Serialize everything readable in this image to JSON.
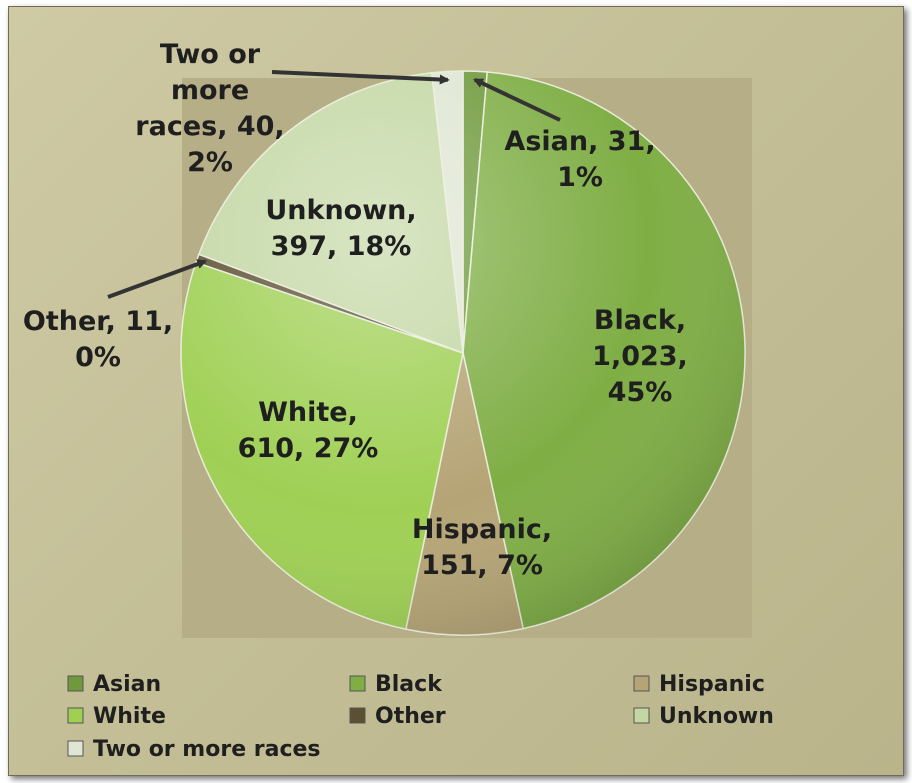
{
  "chart_data": {
    "type": "pie",
    "title": "",
    "slices": [
      {
        "name": "Asian",
        "value": 31,
        "percent": "1%",
        "color": "#6f9a3c",
        "label": [
          "Asian, 31,",
          "1%"
        ]
      },
      {
        "name": "Black",
        "value": 1023,
        "percent": "45%",
        "color": "#7fae45",
        "label": [
          "Black,",
          "1,023,",
          "45%"
        ]
      },
      {
        "name": "Hispanic",
        "value": 151,
        "percent": "7%",
        "color": "#b5a475",
        "label": [
          "Hispanic,",
          "151, 7%"
        ]
      },
      {
        "name": "White",
        "value": 610,
        "percent": "27%",
        "color": "#9fd054",
        "label": [
          "White,",
          "610, 27%"
        ]
      },
      {
        "name": "Other",
        "value": 11,
        "percent": "0%",
        "color": "#5c5034",
        "label": [
          "Other, 11,",
          "0%"
        ]
      },
      {
        "name": "Unknown",
        "value": 397,
        "percent": "18%",
        "color": "#c3d7a3",
        "label": [
          "Unknown,",
          "397, 18%"
        ]
      },
      {
        "name": "Two or more races",
        "value": 40,
        "percent": "2%",
        "color": "#dfe6d3",
        "label": [
          "Two or",
          "more",
          "races, 40,",
          "2%"
        ]
      }
    ],
    "legend": {
      "position": "bottom",
      "entries": [
        "Asian",
        "Black",
        "Hispanic",
        "White",
        "Other",
        "Unknown",
        "Two or more races"
      ]
    },
    "plot_area_color": "#b6ae86"
  }
}
